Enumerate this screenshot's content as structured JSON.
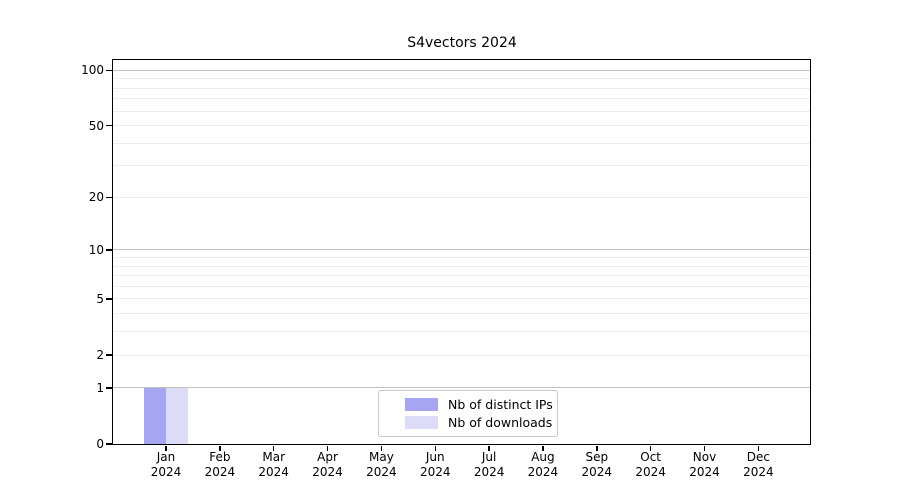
{
  "chart_data": {
    "type": "bar",
    "title": "S4vectors 2024",
    "categories": [
      "Jan",
      "Feb",
      "Mar",
      "Apr",
      "May",
      "Jun",
      "Jul",
      "Aug",
      "Sep",
      "Oct",
      "Nov",
      "Dec"
    ],
    "category_year": "2024",
    "series": [
      {
        "name": "Nb of distinct IPs",
        "color": "#a5a5f2",
        "values": [
          1,
          0,
          0,
          0,
          0,
          0,
          0,
          0,
          0,
          0,
          0,
          0
        ]
      },
      {
        "name": "Nb of downloads",
        "color": "#dcdcf9",
        "values": [
          1,
          0,
          0,
          0,
          0,
          0,
          0,
          0,
          0,
          0,
          0,
          0
        ]
      }
    ],
    "xlabel": "",
    "ylabel": "",
    "yaxis": {
      "scale": "log1p",
      "ylim": [
        0,
        113
      ],
      "tick_values": [
        0,
        1,
        2,
        5,
        10,
        20,
        50,
        100
      ],
      "tick_labels": [
        "0",
        "1",
        "2",
        "5",
        "10",
        "20",
        "50",
        "100"
      ],
      "major_gridline_values": [
        1,
        10,
        100
      ],
      "minor_gridline_values": [
        2,
        3,
        4,
        5,
        6,
        7,
        8,
        9,
        20,
        30,
        40,
        50,
        60,
        70,
        80,
        90
      ]
    },
    "grid": true,
    "legend": {
      "position": "lower center",
      "entries": [
        "Nb of distinct IPs",
        "Nb of downloads"
      ]
    },
    "colors": {
      "axis": "#000000",
      "major_grid": "#c2c2c2",
      "minor_grid": "#ececec",
      "background": "#ffffff"
    }
  }
}
